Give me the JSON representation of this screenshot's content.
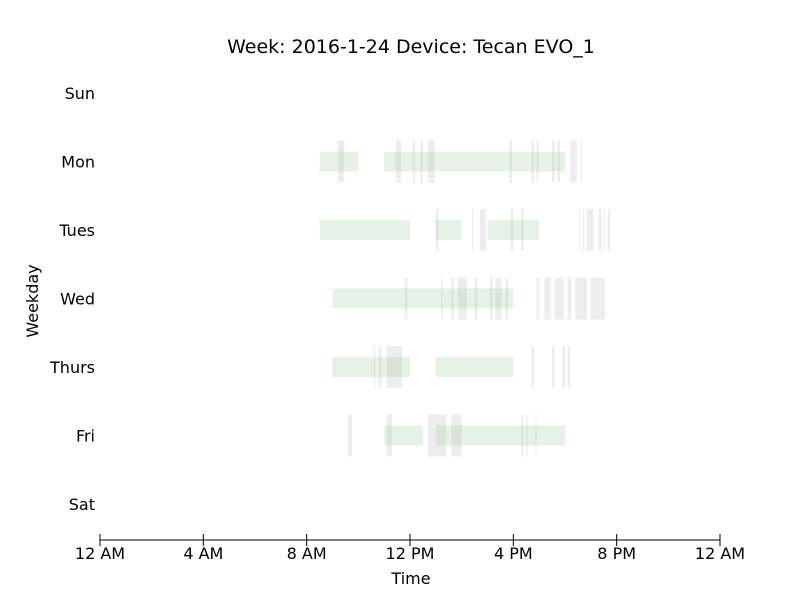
{
  "chart_data": {
    "type": "timeline",
    "title": "Week: 2016-1-24  Device: Tecan EVO_1",
    "xlabel": "Time",
    "ylabel": "Weekday",
    "xlim": [
      0,
      24
    ],
    "x_ticks": [
      {
        "value": 0,
        "label": "12 AM"
      },
      {
        "value": 4,
        "label": "4 AM"
      },
      {
        "value": 8,
        "label": "8 AM"
      },
      {
        "value": 12,
        "label": "12 PM"
      },
      {
        "value": 16,
        "label": "4 PM"
      },
      {
        "value": 20,
        "label": "8 PM"
      },
      {
        "value": 24,
        "label": "12 AM"
      }
    ],
    "days": [
      "Sun",
      "Mon",
      "Tues",
      "Wed",
      "Thurs",
      "Fri",
      "Sat"
    ],
    "grid": false,
    "colors": {
      "usage": "#cfe8cf",
      "event": "#bdbdbd"
    },
    "usage_intervals": [
      {
        "day": "Mon",
        "start": 8.5,
        "end": 10.0
      },
      {
        "day": "Mon",
        "start": 11.0,
        "end": 18.0
      },
      {
        "day": "Tues",
        "start": 8.5,
        "end": 12.0
      },
      {
        "day": "Tues",
        "start": 13.0,
        "end": 14.0
      },
      {
        "day": "Tues",
        "start": 15.0,
        "end": 17.0
      },
      {
        "day": "Wed",
        "start": 9.0,
        "end": 16.0
      },
      {
        "day": "Thurs",
        "start": 9.0,
        "end": 12.0
      },
      {
        "day": "Thurs",
        "start": 13.0,
        "end": 16.0
      },
      {
        "day": "Fri",
        "start": 11.0,
        "end": 12.5
      },
      {
        "day": "Fri",
        "start": 13.0,
        "end": 18.0
      }
    ],
    "event_intervals": [
      {
        "day": "Mon",
        "start": 9.2,
        "end": 9.45
      },
      {
        "day": "Mon",
        "start": 11.45,
        "end": 11.65
      },
      {
        "day": "Mon",
        "start": 12.1,
        "end": 12.2
      },
      {
        "day": "Mon",
        "start": 12.4,
        "end": 12.5
      },
      {
        "day": "Mon",
        "start": 12.7,
        "end": 12.95
      },
      {
        "day": "Mon",
        "start": 15.85,
        "end": 15.95
      },
      {
        "day": "Mon",
        "start": 16.7,
        "end": 16.8
      },
      {
        "day": "Mon",
        "start": 16.9,
        "end": 16.98
      },
      {
        "day": "Mon",
        "start": 17.5,
        "end": 17.6
      },
      {
        "day": "Mon",
        "start": 17.7,
        "end": 17.8
      },
      {
        "day": "Mon",
        "start": 18.2,
        "end": 18.45
      },
      {
        "day": "Mon",
        "start": 18.6,
        "end": 18.65
      },
      {
        "day": "Tues",
        "start": 13.0,
        "end": 13.1
      },
      {
        "day": "Tues",
        "start": 14.4,
        "end": 14.45
      },
      {
        "day": "Tues",
        "start": 14.7,
        "end": 14.95
      },
      {
        "day": "Tues",
        "start": 15.9,
        "end": 16.0
      },
      {
        "day": "Tues",
        "start": 16.3,
        "end": 16.4
      },
      {
        "day": "Tues",
        "start": 18.55,
        "end": 18.6
      },
      {
        "day": "Tues",
        "start": 18.7,
        "end": 18.75
      },
      {
        "day": "Tues",
        "start": 18.85,
        "end": 19.1
      },
      {
        "day": "Tues",
        "start": 19.3,
        "end": 19.4
      },
      {
        "day": "Tues",
        "start": 19.5,
        "end": 19.55
      },
      {
        "day": "Tues",
        "start": 19.65,
        "end": 19.75
      },
      {
        "day": "Wed",
        "start": 11.8,
        "end": 11.9
      },
      {
        "day": "Wed",
        "start": 13.2,
        "end": 13.25
      },
      {
        "day": "Wed",
        "start": 13.6,
        "end": 13.7
      },
      {
        "day": "Wed",
        "start": 13.85,
        "end": 14.2
      },
      {
        "day": "Wed",
        "start": 14.5,
        "end": 14.6
      },
      {
        "day": "Wed",
        "start": 15.1,
        "end": 15.2
      },
      {
        "day": "Wed",
        "start": 15.3,
        "end": 15.55
      },
      {
        "day": "Wed",
        "start": 15.7,
        "end": 15.8
      },
      {
        "day": "Wed",
        "start": 16.9,
        "end": 17.0
      },
      {
        "day": "Wed",
        "start": 17.2,
        "end": 17.45
      },
      {
        "day": "Wed",
        "start": 17.6,
        "end": 17.95
      },
      {
        "day": "Wed",
        "start": 18.1,
        "end": 18.25
      },
      {
        "day": "Wed",
        "start": 18.4,
        "end": 18.85
      },
      {
        "day": "Wed",
        "start": 19.0,
        "end": 19.55
      },
      {
        "day": "Thurs",
        "start": 10.6,
        "end": 10.65
      },
      {
        "day": "Thurs",
        "start": 10.8,
        "end": 10.9
      },
      {
        "day": "Thurs",
        "start": 11.1,
        "end": 11.5
      },
      {
        "day": "Thurs",
        "start": 11.5,
        "end": 11.7
      },
      {
        "day": "Thurs",
        "start": 16.7,
        "end": 16.8
      },
      {
        "day": "Thurs",
        "start": 17.5,
        "end": 17.6
      },
      {
        "day": "Thurs",
        "start": 17.9,
        "end": 18.0
      },
      {
        "day": "Thurs",
        "start": 18.1,
        "end": 18.2
      },
      {
        "day": "Fri",
        "start": 9.6,
        "end": 9.75
      },
      {
        "day": "Fri",
        "start": 11.1,
        "end": 11.3
      },
      {
        "day": "Fri",
        "start": 12.7,
        "end": 13.0
      },
      {
        "day": "Fri",
        "start": 13.0,
        "end": 13.4
      },
      {
        "day": "Fri",
        "start": 13.6,
        "end": 14.0
      },
      {
        "day": "Fri",
        "start": 16.3,
        "end": 16.38
      },
      {
        "day": "Fri",
        "start": 16.5,
        "end": 16.55
      },
      {
        "day": "Fri",
        "start": 16.85,
        "end": 16.9
      }
    ]
  }
}
